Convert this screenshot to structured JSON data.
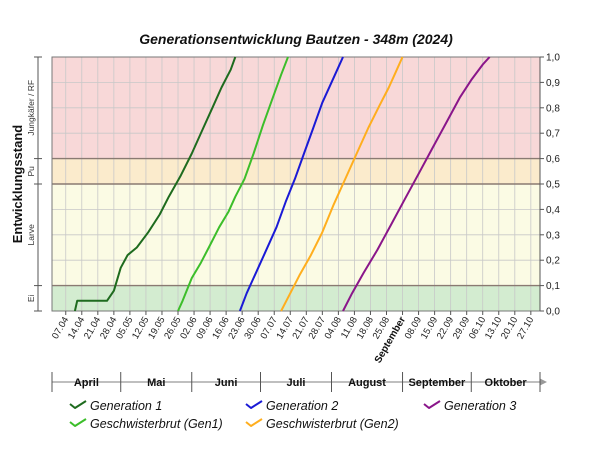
{
  "chart_data": {
    "type": "line",
    "title": "Generationsentwicklung Bautzen - 348m (2024)",
    "ylabel": "Entwicklungsstand",
    "ylim": [
      0,
      1
    ],
    "yticks": [
      "0,0",
      "0,1",
      "0,2",
      "0,3",
      "0,4",
      "0,5",
      "0,6",
      "0,7",
      "0,8",
      "0,9",
      "1,0"
    ],
    "xlim": [
      "2024-04-01",
      "2024-10-31"
    ],
    "xtick_dates": [
      "2024-04-07",
      "2024-04-14",
      "2024-04-21",
      "2024-04-28",
      "2024-05-05",
      "2024-05-12",
      "2024-05-19",
      "2024-05-26",
      "2024-06-02",
      "2024-06-09",
      "2024-06-16",
      "2024-06-23",
      "2024-06-30",
      "2024-07-07",
      "2024-07-14",
      "2024-07-21",
      "2024-07-28",
      "2024-08-04",
      "2024-08-11",
      "2024-08-18",
      "2024-08-25",
      "2024-09-01",
      "2024-09-08",
      "2024-09-15",
      "2024-09-22",
      "2024-09-29",
      "2024-10-06",
      "2024-10-13",
      "2024-10-20",
      "2024-10-27"
    ],
    "xtick_labels": [
      "07.04",
      "14.04",
      "21.04",
      "28.04",
      "05.05",
      "12.05",
      "19.05",
      "26.05",
      "02.06",
      "09.06",
      "16.06",
      "23.06",
      "30.06",
      "07.07",
      "14.07",
      "21.07",
      "28.07",
      "04.08",
      "11.08",
      "18.08",
      "25.08",
      "September",
      "08.09",
      "15.09",
      "22.09",
      "29.09",
      "06.10",
      "13.10",
      "20.10",
      "27.10"
    ],
    "months": [
      {
        "label": "April",
        "start": "2024-04-01",
        "end": "2024-04-30"
      },
      {
        "label": "Mai",
        "start": "2024-05-01",
        "end": "2024-05-31"
      },
      {
        "label": "Juni",
        "start": "2024-06-01",
        "end": "2024-06-30"
      },
      {
        "label": "Juli",
        "start": "2024-07-01",
        "end": "2024-07-31"
      },
      {
        "label": "August",
        "start": "2024-08-01",
        "end": "2024-08-31"
      },
      {
        "label": "September",
        "start": "2024-09-01",
        "end": "2024-09-30"
      },
      {
        "label": "Oktober",
        "start": "2024-10-01",
        "end": "2024-10-31"
      }
    ],
    "stage_bands": [
      {
        "label": "Ei",
        "from": 0.0,
        "to": 0.1,
        "color": "#d3ecd0"
      },
      {
        "label": "Larve",
        "from": 0.1,
        "to": 0.5,
        "color": "#fbfbe4"
      },
      {
        "label": "Pu",
        "from": 0.5,
        "to": 0.6,
        "color": "#fbebcc"
      },
      {
        "label": "Jungkäfer / RF",
        "from": 0.6,
        "to": 1.0,
        "color": "#f8d8d8"
      }
    ],
    "series": [
      {
        "name": "Generation 1",
        "color": "#1e6b1e",
        "points": [
          [
            "2024-04-11",
            0.0
          ],
          [
            "2024-04-12",
            0.04
          ],
          [
            "2024-04-25",
            0.04
          ],
          [
            "2024-04-28",
            0.08
          ],
          [
            "2024-05-01",
            0.17
          ],
          [
            "2024-05-04",
            0.22
          ],
          [
            "2024-05-08",
            0.25
          ],
          [
            "2024-05-13",
            0.31
          ],
          [
            "2024-05-18",
            0.38
          ],
          [
            "2024-05-22",
            0.45
          ],
          [
            "2024-05-27",
            0.53
          ],
          [
            "2024-06-01",
            0.62
          ],
          [
            "2024-06-06",
            0.72
          ],
          [
            "2024-06-10",
            0.8
          ],
          [
            "2024-06-14",
            0.88
          ],
          [
            "2024-06-18",
            0.95
          ],
          [
            "2024-06-20",
            1.0
          ]
        ]
      },
      {
        "name": "Geschwisterbrut (Gen1)",
        "color": "#3cbe2a",
        "points": [
          [
            "2024-05-26",
            0.0
          ],
          [
            "2024-05-28",
            0.04
          ],
          [
            "2024-06-01",
            0.13
          ],
          [
            "2024-06-05",
            0.19
          ],
          [
            "2024-06-09",
            0.26
          ],
          [
            "2024-06-13",
            0.33
          ],
          [
            "2024-06-17",
            0.39
          ],
          [
            "2024-06-20",
            0.45
          ],
          [
            "2024-06-24",
            0.52
          ],
          [
            "2024-06-28",
            0.62
          ],
          [
            "2024-07-02",
            0.73
          ],
          [
            "2024-07-06",
            0.83
          ],
          [
            "2024-07-10",
            0.93
          ],
          [
            "2024-07-13",
            1.0
          ]
        ]
      },
      {
        "name": "Generation 2",
        "color": "#1a1ad6",
        "points": [
          [
            "2024-06-22",
            0.0
          ],
          [
            "2024-06-25",
            0.07
          ],
          [
            "2024-06-29",
            0.15
          ],
          [
            "2024-07-03",
            0.23
          ],
          [
            "2024-07-08",
            0.33
          ],
          [
            "2024-07-12",
            0.43
          ],
          [
            "2024-07-16",
            0.52
          ],
          [
            "2024-07-20",
            0.62
          ],
          [
            "2024-07-24",
            0.72
          ],
          [
            "2024-07-28",
            0.82
          ],
          [
            "2024-08-01",
            0.9
          ],
          [
            "2024-08-04",
            0.96
          ],
          [
            "2024-08-06",
            1.0
          ]
        ]
      },
      {
        "name": "Geschwisterbrut (Gen2)",
        "color": "#ffae1e",
        "points": [
          [
            "2024-07-10",
            0.0
          ],
          [
            "2024-07-14",
            0.07
          ],
          [
            "2024-07-18",
            0.14
          ],
          [
            "2024-07-23",
            0.22
          ],
          [
            "2024-07-28",
            0.31
          ],
          [
            "2024-08-02",
            0.42
          ],
          [
            "2024-08-07",
            0.52
          ],
          [
            "2024-08-12",
            0.62
          ],
          [
            "2024-08-17",
            0.72
          ],
          [
            "2024-08-22",
            0.81
          ],
          [
            "2024-08-26",
            0.88
          ],
          [
            "2024-08-29",
            0.94
          ],
          [
            "2024-09-01",
            1.0
          ]
        ]
      },
      {
        "name": "Generation 3",
        "color": "#8a168a",
        "points": [
          [
            "2024-08-06",
            0.0
          ],
          [
            "2024-08-10",
            0.07
          ],
          [
            "2024-08-15",
            0.15
          ],
          [
            "2024-08-21",
            0.24
          ],
          [
            "2024-08-27",
            0.34
          ],
          [
            "2024-09-02",
            0.44
          ],
          [
            "2024-09-08",
            0.54
          ],
          [
            "2024-09-14",
            0.64
          ],
          [
            "2024-09-20",
            0.74
          ],
          [
            "2024-09-26",
            0.84
          ],
          [
            "2024-10-01",
            0.91
          ],
          [
            "2024-10-06",
            0.97
          ],
          [
            "2024-10-09",
            1.0
          ]
        ]
      }
    ],
    "legend": [
      "Generation 1",
      "Generation 2",
      "Generation 3",
      "Geschwisterbrut (Gen1)",
      "Geschwisterbrut (Gen2)"
    ],
    "legend_placement": "bottom",
    "grid": true
  }
}
